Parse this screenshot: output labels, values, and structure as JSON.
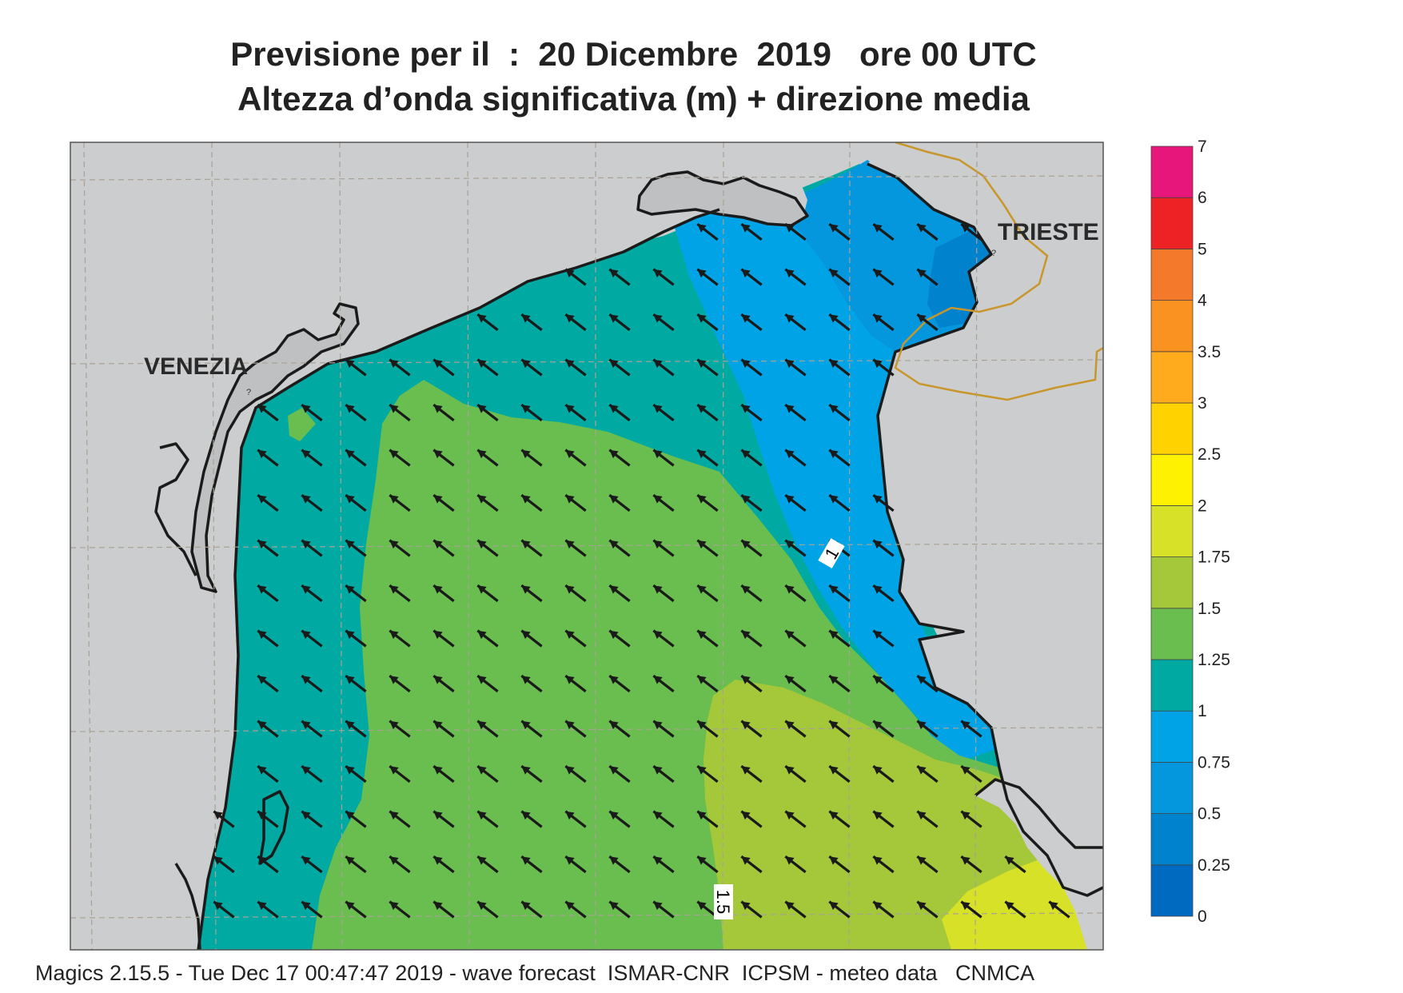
{
  "title": {
    "line1": "Previsione per il  :  20 Dicembre  2019   ore 00 UTC",
    "line2": "Altezza d’onda significativa (m) + direzione media"
  },
  "labels": {
    "venezia": "VENEZIA",
    "trieste": "TRIESTE",
    "contour_1": "1",
    "contour_1_5": "1.5"
  },
  "footer": "Magics 2.15.5 - Tue Dec 17 00:47:47 2019 - wave forecast  ISMAR-CNR  ICPSM - meteo data   CNMCA",
  "legend": {
    "levels": [
      "0",
      "0.25",
      "0.5",
      "0.75",
      "1",
      "1.25",
      "1.5",
      "1.75",
      "2",
      "2.5",
      "3",
      "3.5",
      "4",
      "5",
      "6",
      "7"
    ],
    "colors": [
      "#0069c0",
      "#0082cc",
      "#0597dd",
      "#00a4e6",
      "#00aaa3",
      "#6abd4f",
      "#a4c83a",
      "#d6e128",
      "#fff200",
      "#ffd200",
      "#ffab1d",
      "#f99220",
      "#f4792a",
      "#ed2224",
      "#e7167b"
    ]
  },
  "colors": {
    "land": "#cccdce",
    "mainland": "#bfc0c1",
    "coast": "#1b1b1b",
    "border": "#c8962a",
    "grid": "#a8a296",
    "arrow": "#1a1a1a"
  },
  "wave_direction": "NW"
}
